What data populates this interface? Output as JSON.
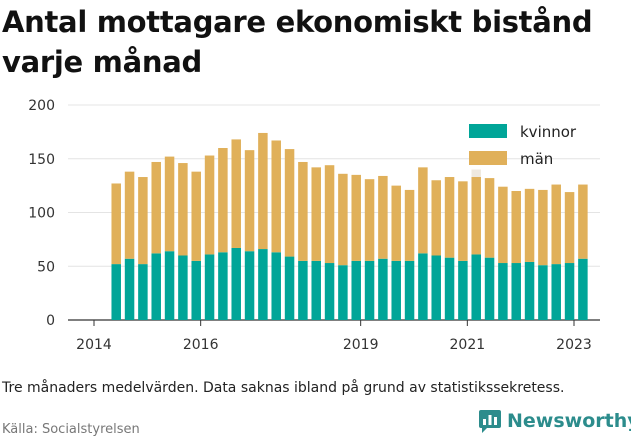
{
  "title": "Antal mottagare ekonomiskt bistånd varje månad",
  "note": "Tre månaders medelvärden. Data saknas ibland på grund av statistikssekretess.",
  "source": "Källa: Socialstyrelsen",
  "brand": {
    "name": "Newsworthy",
    "icon": "bar-chart-logo-icon",
    "color": "#2c8c8c"
  },
  "chart_data": {
    "type": "bar",
    "stacked": true,
    "xlabel": "",
    "ylabel": "",
    "ylim": [
      0,
      200
    ],
    "yticks": [
      0,
      50,
      100,
      150,
      200
    ],
    "xticks": [
      "2014",
      "2016",
      "2019",
      "2021",
      "2023"
    ],
    "grid": true,
    "legend_position": "top-right",
    "categories": [
      "2014-06",
      "2014-09",
      "2014-12",
      "2015-03",
      "2015-06",
      "2015-09",
      "2015-12",
      "2016-03",
      "2016-06",
      "2016-09",
      "2016-12",
      "2017-03",
      "2017-06",
      "2017-09",
      "2017-12",
      "2018-03",
      "2018-06",
      "2018-09",
      "2018-12",
      "2019-03",
      "2019-06",
      "2019-09",
      "2019-12",
      "2020-03",
      "2020-06",
      "2020-09",
      "2020-12",
      "2021-03",
      "2021-06",
      "2021-09",
      "2021-12",
      "2022-03",
      "2022-06",
      "2022-09",
      "2022-12",
      "2023-03"
    ],
    "series": [
      {
        "name": "kvinnor",
        "color": "#00a598",
        "values": [
          52,
          57,
          52,
          62,
          64,
          60,
          55,
          61,
          63,
          67,
          64,
          66,
          63,
          59,
          55,
          55,
          53,
          51,
          55,
          55,
          57,
          55,
          55,
          62,
          60,
          58,
          55,
          61,
          58,
          53,
          53,
          54,
          51,
          52,
          53,
          57
        ]
      },
      {
        "name": "män",
        "color": "#e0b05a",
        "values": [
          75,
          81,
          81,
          85,
          88,
          86,
          83,
          92,
          97,
          101,
          94,
          108,
          104,
          100,
          92,
          87,
          91,
          85,
          80,
          76,
          77,
          70,
          66,
          80,
          70,
          75,
          74,
          72,
          74,
          71,
          67,
          68,
          70,
          74,
          66,
          69
        ]
      }
    ],
    "ghost_bars": [
      {
        "category": "2021-03",
        "value": 140
      }
    ]
  }
}
